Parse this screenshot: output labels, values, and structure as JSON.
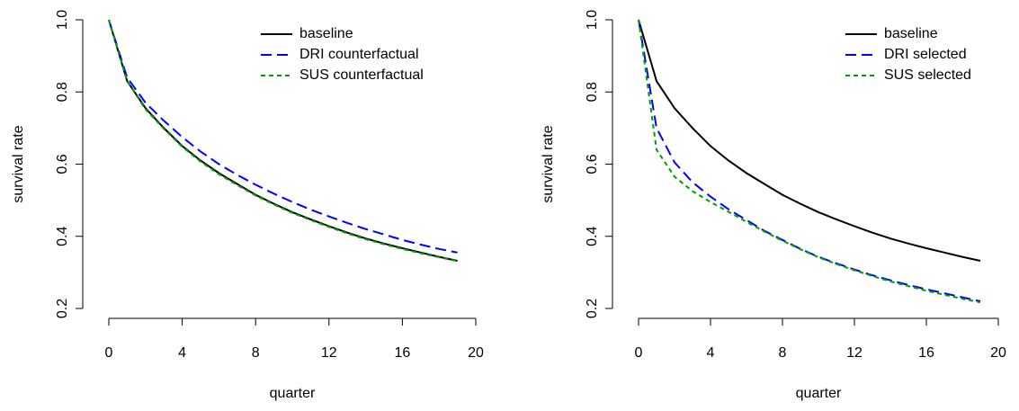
{
  "chart_data": [
    {
      "type": "line",
      "xlabel": "quarter",
      "ylabel": "survival rate",
      "x": [
        0,
        1,
        2,
        3,
        4,
        5,
        6,
        7,
        8,
        9,
        10,
        11,
        12,
        13,
        14,
        15,
        16,
        17,
        18,
        19
      ],
      "xlim": [
        0,
        20
      ],
      "xticks": [
        0,
        4,
        8,
        12,
        16,
        20
      ],
      "ylim": [
        0.2,
        1
      ],
      "yticks": [
        0.2,
        0.4,
        0.6,
        0.8,
        {
          "value": 1,
          "label": "1.0"
        }
      ],
      "legend": "top-right",
      "series": [
        {
          "name": "baseline",
          "color": "#000000",
          "dash": "solid",
          "values": [
            1.0,
            0.83,
            0.755,
            0.7,
            0.65,
            0.61,
            0.575,
            0.545,
            0.515,
            0.49,
            0.467,
            0.447,
            0.428,
            0.41,
            0.394,
            0.38,
            0.367,
            0.355,
            0.343,
            0.332
          ]
        },
        {
          "name": "DRI counterfactual",
          "color": "#0000ff",
          "dash": "dashed",
          "values": [
            1.0,
            0.84,
            0.77,
            0.72,
            0.675,
            0.635,
            0.6,
            0.57,
            0.543,
            0.518,
            0.495,
            0.474,
            0.455,
            0.437,
            0.42,
            0.405,
            0.39,
            0.377,
            0.365,
            0.355
          ]
        },
        {
          "name": "SUS counterfactual",
          "color": "#00a000",
          "dash": "dotted",
          "values": [
            1.0,
            0.83,
            0.752,
            0.698,
            0.648,
            0.607,
            0.572,
            0.542,
            0.513,
            0.488,
            0.465,
            0.445,
            0.426,
            0.408,
            0.392,
            0.378,
            0.365,
            0.353,
            0.342,
            0.331
          ]
        }
      ]
    },
    {
      "type": "line",
      "xlabel": "quarter",
      "ylabel": "survival rate",
      "x": [
        0,
        1,
        2,
        3,
        4,
        5,
        6,
        7,
        8,
        9,
        10,
        11,
        12,
        13,
        14,
        15,
        16,
        17,
        18,
        19
      ],
      "xlim": [
        0,
        20
      ],
      "xticks": [
        0,
        4,
        8,
        12,
        16,
        20
      ],
      "ylim": [
        0.2,
        1
      ],
      "yticks": [
        0.2,
        0.4,
        0.6,
        0.8,
        {
          "value": 1,
          "label": "1.0"
        }
      ],
      "legend": "top-right",
      "series": [
        {
          "name": "baseline",
          "color": "#000000",
          "dash": "solid",
          "values": [
            1.0,
            0.83,
            0.755,
            0.7,
            0.65,
            0.61,
            0.575,
            0.545,
            0.515,
            0.49,
            0.467,
            0.447,
            0.428,
            0.41,
            0.394,
            0.38,
            0.367,
            0.355,
            0.343,
            0.332
          ]
        },
        {
          "name": "DRI selected",
          "color": "#0000ff",
          "dash": "dashed",
          "values": [
            1.0,
            0.7,
            0.605,
            0.55,
            0.51,
            0.475,
            0.445,
            0.415,
            0.39,
            0.365,
            0.343,
            0.325,
            0.308,
            0.292,
            0.278,
            0.265,
            0.253,
            0.242,
            0.231,
            0.22
          ]
        },
        {
          "name": "SUS selected",
          "color": "#00a000",
          "dash": "dotted",
          "values": [
            1.0,
            0.64,
            0.565,
            0.525,
            0.495,
            0.468,
            0.44,
            0.413,
            0.388,
            0.364,
            0.342,
            0.323,
            0.306,
            0.29,
            0.275,
            0.262,
            0.249,
            0.238,
            0.227,
            0.217
          ]
        }
      ]
    }
  ]
}
